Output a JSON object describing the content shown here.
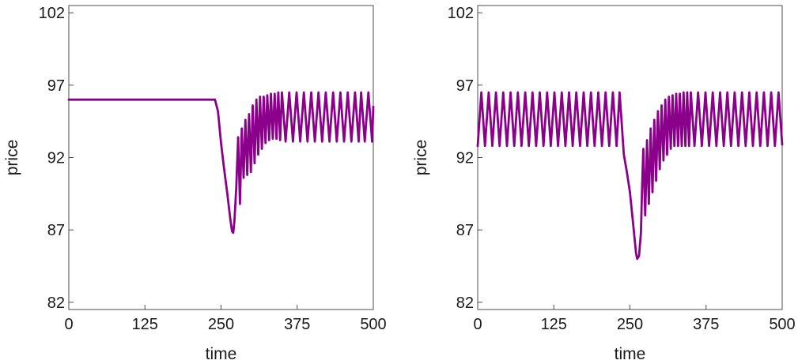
{
  "chart_data": [
    {
      "type": "line",
      "xlabel": "time",
      "ylabel": "price",
      "xlim": [
        0,
        500
      ],
      "ylim": [
        81.5,
        102.5
      ],
      "xticks": [
        "0",
        "125",
        "250",
        "375",
        "500"
      ],
      "xtick_values": [
        0,
        125,
        250,
        375,
        500
      ],
      "yticks": [
        "82",
        "87",
        "92",
        "97",
        "102"
      ],
      "ytick_values": [
        82,
        87,
        92,
        97,
        102
      ],
      "grid": false,
      "legend": false,
      "color": "#8B008B",
      "series": [
        {
          "x": [
            0,
            100,
            200,
            240,
            245,
            250,
            255,
            260,
            265,
            268,
            270,
            272,
            275,
            278,
            281,
            284,
            287,
            290,
            293,
            296,
            299,
            302,
            305,
            308,
            311,
            314,
            317,
            320,
            323,
            326,
            329,
            332,
            335,
            338,
            341,
            344,
            347,
            350,
            356,
            362,
            368,
            374,
            380,
            386,
            392,
            398,
            404,
            410,
            416,
            422,
            428,
            434,
            440,
            446,
            452,
            458,
            464,
            470,
            476,
            480,
            486,
            492,
            498,
            500
          ],
          "y": [
            96.0,
            96.0,
            96.0,
            96.0,
            95.2,
            93.0,
            91.2,
            89.6,
            87.8,
            86.9,
            86.8,
            87.6,
            90.0,
            93.4,
            88.8,
            94.0,
            90.6,
            94.6,
            90.8,
            95.0,
            91.0,
            95.6,
            91.6,
            96.0,
            92.2,
            96.2,
            92.6,
            96.2,
            93.0,
            96.3,
            93.2,
            96.4,
            93.3,
            96.4,
            93.3,
            96.5,
            93.2,
            96.5,
            93.1,
            96.5,
            93.1,
            96.5,
            93.1,
            96.5,
            93.1,
            96.5,
            93.1,
            96.5,
            93.1,
            96.5,
            93.1,
            96.5,
            93.1,
            96.5,
            93.1,
            96.5,
            93.1,
            96.5,
            93.1,
            96.5,
            93.1,
            96.5,
            93.1,
            95.5
          ]
        }
      ]
    },
    {
      "type": "line",
      "xlabel": "time",
      "ylabel": "price",
      "xlim": [
        0,
        500
      ],
      "ylim": [
        81.5,
        102.5
      ],
      "xticks": [
        "0",
        "125",
        "250",
        "375",
        "500"
      ],
      "xtick_values": [
        0,
        125,
        250,
        375,
        500
      ],
      "yticks": [
        "82",
        "87",
        "92",
        "97",
        "102"
      ],
      "ytick_values": [
        82,
        87,
        92,
        97,
        102
      ],
      "grid": false,
      "legend": false,
      "color": "#8B008B",
      "series": [
        {
          "x": [
            0,
            6,
            12,
            18,
            24,
            30,
            36,
            42,
            48,
            54,
            60,
            66,
            72,
            78,
            84,
            90,
            96,
            102,
            108,
            114,
            120,
            126,
            132,
            138,
            144,
            150,
            156,
            162,
            168,
            174,
            180,
            186,
            192,
            198,
            204,
            210,
            216,
            222,
            228,
            233,
            240,
            245,
            250,
            255,
            260,
            262,
            265,
            268,
            270,
            272,
            275,
            278,
            281,
            284,
            287,
            290,
            293,
            296,
            299,
            302,
            305,
            308,
            311,
            314,
            317,
            320,
            323,
            326,
            329,
            332,
            335,
            338,
            341,
            344,
            347,
            350,
            356,
            362,
            368,
            374,
            380,
            386,
            392,
            398,
            404,
            410,
            416,
            422,
            428,
            434,
            440,
            446,
            452,
            458,
            464,
            470,
            476,
            482,
            488,
            494,
            500
          ],
          "y": [
            92.8,
            96.5,
            92.8,
            96.5,
            92.8,
            96.5,
            92.8,
            96.5,
            92.8,
            96.5,
            92.8,
            96.5,
            92.8,
            96.5,
            92.8,
            96.5,
            92.8,
            96.5,
            92.8,
            96.5,
            92.8,
            96.5,
            92.8,
            96.5,
            92.8,
            96.5,
            92.8,
            96.5,
            92.8,
            96.5,
            92.8,
            96.5,
            92.8,
            96.5,
            92.8,
            96.5,
            92.8,
            96.5,
            92.8,
            96.5,
            92.2,
            91.0,
            89.6,
            87.5,
            85.4,
            85.0,
            85.2,
            86.8,
            90.0,
            92.6,
            88.0,
            93.2,
            88.8,
            94.0,
            89.6,
            94.6,
            90.4,
            95.2,
            91.2,
            95.6,
            91.8,
            96.0,
            92.2,
            96.2,
            92.6,
            96.3,
            92.8,
            96.4,
            92.8,
            96.4,
            92.8,
            96.5,
            92.8,
            96.5,
            92.8,
            96.5,
            92.8,
            96.5,
            92.8,
            96.5,
            92.8,
            96.5,
            92.8,
            96.5,
            92.8,
            96.5,
            92.8,
            96.5,
            92.8,
            96.5,
            92.8,
            96.5,
            92.8,
            96.5,
            92.8,
            96.5,
            92.8,
            96.5,
            92.8,
            96.5,
            92.9
          ]
        }
      ]
    }
  ]
}
